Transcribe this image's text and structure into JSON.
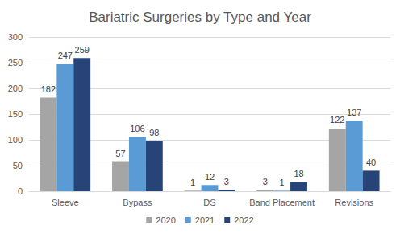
{
  "chart_data": {
    "type": "bar",
    "title": "Bariatric Surgeries by Type and Year",
    "categories": [
      "Sleeve",
      "Bypass",
      "DS",
      "Band Placement",
      "Revisions"
    ],
    "series": [
      {
        "name": "2020",
        "color": "#a5a5a5",
        "values": [
          182,
          57,
          1,
          3,
          122
        ]
      },
      {
        "name": "2021",
        "color": "#5b9bd5",
        "values": [
          247,
          106,
          12,
          1,
          137
        ]
      },
      {
        "name": "2022",
        "color": "#264478",
        "values": [
          259,
          98,
          3,
          18,
          40
        ]
      }
    ],
    "ylim": [
      0,
      300
    ],
    "yticks": [
      0,
      50,
      100,
      150,
      200,
      250,
      300
    ],
    "grid": true,
    "legend": "bottom",
    "data_labels": true
  }
}
